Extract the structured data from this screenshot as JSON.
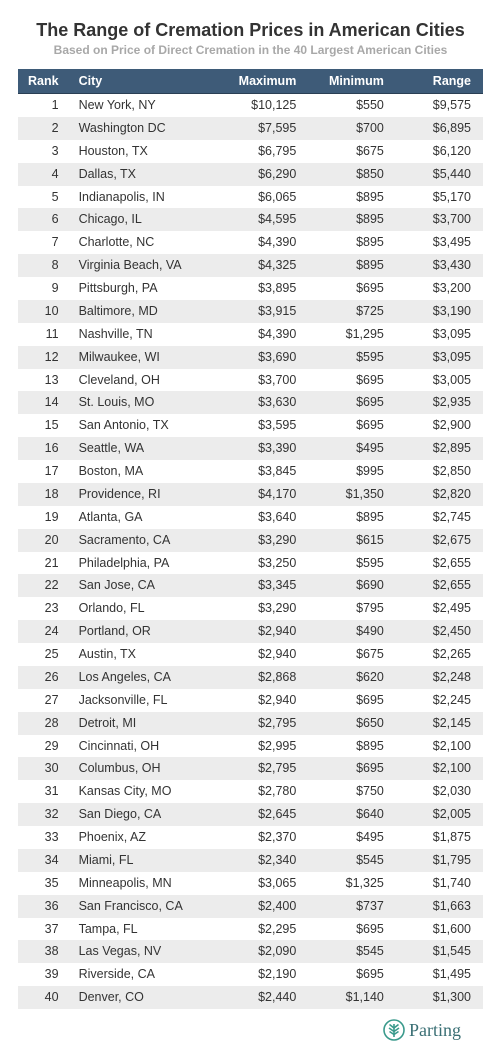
{
  "currency_prefix": "$",
  "colors": {
    "header_bg": "#3e5b78",
    "header_text": "#ffffff",
    "row_odd_bg": "#ffffff",
    "row_even_bg": "#ececec",
    "title_color": "#333333",
    "subtitle_color": "#a8a8a8",
    "logo_color": "#3a9a8c",
    "logo_text_color": "#3a6f74"
  },
  "typography": {
    "title_fontsize": 18,
    "subtitle_fontsize": 12,
    "body_fontsize": 12.5,
    "footer_fontsize": 18
  },
  "title": "The Range of Cremation Prices in American Cities",
  "subtitle": "Based on Price of Direct Cremation in the 40 Largest American Cities",
  "table": {
    "type": "table",
    "columns": [
      "Rank",
      "City",
      "Maximum",
      "Minimum",
      "Range"
    ],
    "rows": [
      {
        "rank": 1,
        "city": "New York, NY",
        "max": "10,125",
        "min": "550",
        "range": "9,575"
      },
      {
        "rank": 2,
        "city": "Washington DC",
        "max": "7,595",
        "min": "700",
        "range": "6,895"
      },
      {
        "rank": 3,
        "city": "Houston, TX",
        "max": "6,795",
        "min": "675",
        "range": "6,120"
      },
      {
        "rank": 4,
        "city": "Dallas, TX",
        "max": "6,290",
        "min": "850",
        "range": "5,440"
      },
      {
        "rank": 5,
        "city": "Indianapolis, IN",
        "max": "6,065",
        "min": "895",
        "range": "5,170"
      },
      {
        "rank": 6,
        "city": "Chicago, IL",
        "max": "4,595",
        "min": "895",
        "range": "3,700"
      },
      {
        "rank": 7,
        "city": "Charlotte, NC",
        "max": "4,390",
        "min": "895",
        "range": "3,495"
      },
      {
        "rank": 8,
        "city": "Virginia Beach, VA",
        "max": "4,325",
        "min": "895",
        "range": "3,430"
      },
      {
        "rank": 9,
        "city": "Pittsburgh, PA",
        "max": "3,895",
        "min": "695",
        "range": "3,200"
      },
      {
        "rank": 10,
        "city": "Baltimore, MD",
        "max": "3,915",
        "min": "725",
        "range": "3,190"
      },
      {
        "rank": 11,
        "city": "Nashville, TN",
        "max": "4,390",
        "min": "1,295",
        "range": "3,095"
      },
      {
        "rank": 12,
        "city": "Milwaukee, WI",
        "max": "3,690",
        "min": "595",
        "range": "3,095"
      },
      {
        "rank": 13,
        "city": "Cleveland, OH",
        "max": "3,700",
        "min": "695",
        "range": "3,005"
      },
      {
        "rank": 14,
        "city": "St. Louis, MO",
        "max": "3,630",
        "min": "695",
        "range": "2,935"
      },
      {
        "rank": 15,
        "city": "San Antonio, TX",
        "max": "3,595",
        "min": "695",
        "range": "2,900"
      },
      {
        "rank": 16,
        "city": "Seattle, WA",
        "max": "3,390",
        "min": "495",
        "range": "2,895"
      },
      {
        "rank": 17,
        "city": "Boston, MA",
        "max": "3,845",
        "min": "995",
        "range": "2,850"
      },
      {
        "rank": 18,
        "city": "Providence, RI",
        "max": "4,170",
        "min": "1,350",
        "range": "2,820"
      },
      {
        "rank": 19,
        "city": "Atlanta, GA",
        "max": "3,640",
        "min": "895",
        "range": "2,745"
      },
      {
        "rank": 20,
        "city": "Sacramento, CA",
        "max": "3,290",
        "min": "615",
        "range": "2,675"
      },
      {
        "rank": 21,
        "city": "Philadelphia, PA",
        "max": "3,250",
        "min": "595",
        "range": "2,655"
      },
      {
        "rank": 22,
        "city": "San Jose, CA",
        "max": "3,345",
        "min": "690",
        "range": "2,655"
      },
      {
        "rank": 23,
        "city": "Orlando, FL",
        "max": "3,290",
        "min": "795",
        "range": "2,495"
      },
      {
        "rank": 24,
        "city": "Portland, OR",
        "max": "2,940",
        "min": "490",
        "range": "2,450"
      },
      {
        "rank": 25,
        "city": "Austin, TX",
        "max": "2,940",
        "min": "675",
        "range": "2,265"
      },
      {
        "rank": 26,
        "city": "Los Angeles, CA",
        "max": "2,868",
        "min": "620",
        "range": "2,248"
      },
      {
        "rank": 27,
        "city": "Jacksonville, FL",
        "max": "2,940",
        "min": "695",
        "range": "2,245"
      },
      {
        "rank": 28,
        "city": "Detroit, MI",
        "max": "2,795",
        "min": "650",
        "range": "2,145"
      },
      {
        "rank": 29,
        "city": "Cincinnati, OH",
        "max": "2,995",
        "min": "895",
        "range": "2,100"
      },
      {
        "rank": 30,
        "city": "Columbus, OH",
        "max": "2,795",
        "min": "695",
        "range": "2,100"
      },
      {
        "rank": 31,
        "city": "Kansas City, MO",
        "max": "2,780",
        "min": "750",
        "range": "2,030"
      },
      {
        "rank": 32,
        "city": "San Diego, CA",
        "max": "2,645",
        "min": "640",
        "range": "2,005"
      },
      {
        "rank": 33,
        "city": "Phoenix, AZ",
        "max": "2,370",
        "min": "495",
        "range": "1,875"
      },
      {
        "rank": 34,
        "city": "Miami, FL",
        "max": "2,340",
        "min": "545",
        "range": "1,795"
      },
      {
        "rank": 35,
        "city": "Minneapolis, MN",
        "max": "3,065",
        "min": "1,325",
        "range": "1,740"
      },
      {
        "rank": 36,
        "city": "San Francisco, CA",
        "max": "2,400",
        "min": "737",
        "range": "1,663"
      },
      {
        "rank": 37,
        "city": "Tampa, FL",
        "max": "2,295",
        "min": "695",
        "range": "1,600"
      },
      {
        "rank": 38,
        "city": "Las Vegas, NV",
        "max": "2,090",
        "min": "545",
        "range": "1,545"
      },
      {
        "rank": 39,
        "city": "Riverside, CA",
        "max": "2,190",
        "min": "695",
        "range": "1,495"
      },
      {
        "rank": 40,
        "city": "Denver, CO",
        "max": "2,440",
        "min": "1,140",
        "range": "1,300"
      }
    ]
  },
  "footer": {
    "brand": "Parting",
    "icon_name": "tree-circle-icon"
  }
}
